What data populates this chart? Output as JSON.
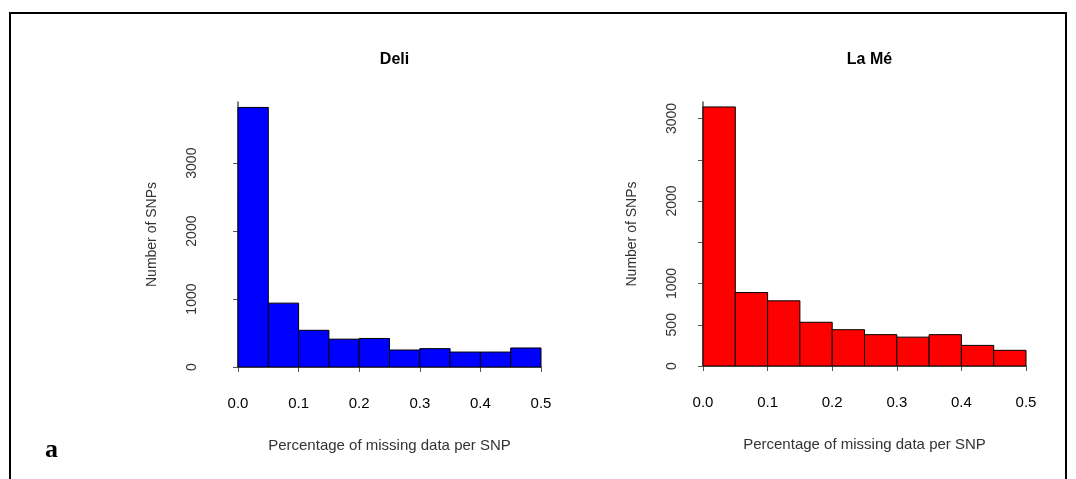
{
  "chart_data": [
    {
      "type": "histogram",
      "title": "Deli",
      "xlabel": "Percentage of missing data per SNP",
      "ylabel": "Number of SNPs",
      "color": "#0000ff",
      "bins": [
        0,
        0.05,
        0.1,
        0.15,
        0.2,
        0.25,
        0.3,
        0.35,
        0.4,
        0.45,
        0.5
      ],
      "values": [
        3820,
        940,
        540,
        410,
        420,
        250,
        270,
        220,
        220,
        280
      ],
      "xlim": [
        0,
        0.5
      ],
      "xticks": [
        {
          "value": 0,
          "label": "0.0"
        },
        0.1,
        0.2,
        0.3,
        0.4,
        0.5
      ],
      "ylim": [
        0,
        3900
      ],
      "yticks": [
        0,
        1000,
        2000,
        3000
      ],
      "grid": false,
      "annotations": [
        "a"
      ]
    },
    {
      "type": "histogram",
      "title": "La Mé",
      "xlabel": "Percentage of missing data per SNP",
      "ylabel": "Number of SNPs",
      "color": "#ff0000",
      "bins": [
        0,
        0.05,
        0.1,
        0.15,
        0.2,
        0.25,
        0.3,
        0.35,
        0.4,
        0.45,
        0.5
      ],
      "values": [
        3140,
        890,
        790,
        530,
        440,
        380,
        350,
        380,
        250,
        190
      ],
      "xlim": [
        0,
        0.5
      ],
      "xticks": [
        {
          "value": 0,
          "label": "0.0"
        },
        0.1,
        0.2,
        0.3,
        0.4,
        0.5
      ],
      "ylim": [
        0,
        3200
      ],
      "yticks": [
        0,
        500,
        1000,
        {
          "value": 1500,
          "label": null
        },
        2000,
        {
          "value": 2500,
          "label": null
        },
        3000
      ],
      "grid": false
    }
  ]
}
